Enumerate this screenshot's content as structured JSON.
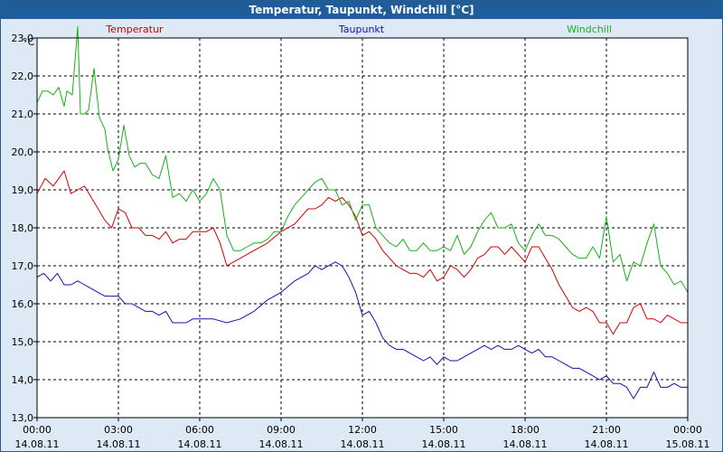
{
  "window": {
    "title": "Temperatur, Taupunkt, Windchill [°C]"
  },
  "colors": {
    "background": "#dde9f4",
    "plot_bg": "#ffffff",
    "grid": "#000000",
    "temperatur": "#d40000",
    "taupunkt": "#1010b0",
    "windchill": "#18b018"
  },
  "chart_data": {
    "type": "line",
    "title": "Temperatur, Taupunkt, Windchill [°C]",
    "ylabel": "°C",
    "xlabel": "",
    "ylim": [
      13.0,
      23.0
    ],
    "y_ticks": [
      "13,0",
      "14,0",
      "15,0",
      "16,0",
      "17,0",
      "18,0",
      "19,0",
      "20,0",
      "21,0",
      "22,0",
      "23,0"
    ],
    "xlim": [
      0,
      24
    ],
    "x_ticks": [
      {
        "time": "00:00",
        "date": "14.08.11"
      },
      {
        "time": "03:00",
        "date": "14.08.11"
      },
      {
        "time": "06:00",
        "date": "14.08.11"
      },
      {
        "time": "09:00",
        "date": "14.08.11"
      },
      {
        "time": "12:00",
        "date": "14.08.11"
      },
      {
        "time": "15:00",
        "date": "14.08.11"
      },
      {
        "time": "18:00",
        "date": "14.08.11"
      },
      {
        "time": "21:00",
        "date": "14.08.11"
      },
      {
        "time": "00:00",
        "date": "15.08.11"
      }
    ],
    "grid": true,
    "series": [
      {
        "name": "Temperatur",
        "color": "#d40000",
        "x": [
          0,
          0.3,
          0.6,
          1.0,
          1.25,
          1.5,
          1.75,
          2.0,
          2.5,
          2.75,
          3.0,
          3.25,
          3.5,
          3.75,
          4.0,
          4.25,
          4.5,
          4.75,
          5.0,
          5.25,
          5.5,
          5.75,
          6.0,
          6.25,
          6.5,
          6.75,
          7.0,
          7.5,
          8.0,
          8.5,
          9.0,
          9.5,
          10.0,
          10.25,
          10.5,
          10.75,
          11.0,
          11.25,
          11.5,
          11.75,
          12.0,
          12.25,
          12.5,
          12.75,
          13.0,
          13.25,
          13.5,
          13.75,
          14.0,
          14.25,
          14.5,
          14.75,
          15.0,
          15.25,
          15.5,
          15.75,
          16.0,
          16.25,
          16.5,
          16.75,
          17.0,
          17.25,
          17.5,
          17.75,
          18.0,
          18.25,
          18.5,
          18.75,
          19.0,
          19.25,
          19.5,
          19.75,
          20.0,
          20.25,
          20.5,
          20.75,
          21.0,
          21.25,
          21.5,
          21.75,
          22.0,
          22.25,
          22.5,
          22.75,
          23.0,
          23.25,
          23.5,
          23.75,
          24.0
        ],
        "values": [
          18.9,
          19.3,
          19.1,
          19.5,
          18.9,
          19.0,
          19.1,
          18.8,
          18.2,
          18.0,
          18.5,
          18.4,
          18.0,
          18.0,
          17.8,
          17.8,
          17.7,
          17.9,
          17.6,
          17.7,
          17.7,
          17.9,
          17.9,
          17.9,
          18.0,
          17.6,
          17.0,
          17.2,
          17.4,
          17.6,
          17.9,
          18.1,
          18.5,
          18.5,
          18.6,
          18.8,
          18.7,
          18.8,
          18.6,
          18.3,
          17.8,
          17.9,
          17.7,
          17.4,
          17.2,
          17.0,
          16.9,
          16.8,
          16.8,
          16.7,
          16.9,
          16.6,
          16.7,
          17.0,
          16.9,
          16.7,
          16.9,
          17.2,
          17.3,
          17.5,
          17.5,
          17.3,
          17.5,
          17.3,
          17.1,
          17.5,
          17.5,
          17.2,
          16.9,
          16.5,
          16.2,
          15.9,
          15.8,
          15.9,
          15.8,
          15.5,
          15.5,
          15.2,
          15.5,
          15.5,
          15.9,
          16.0,
          15.6,
          15.6,
          15.5,
          15.7,
          15.6,
          15.5,
          15.5
        ]
      },
      {
        "name": "Taupunkt",
        "color": "#1010b0",
        "x": [
          0,
          0.25,
          0.5,
          0.75,
          1.0,
          1.25,
          1.5,
          1.75,
          2.0,
          2.25,
          2.5,
          2.75,
          3.0,
          3.25,
          3.5,
          3.75,
          4.0,
          4.25,
          4.5,
          4.75,
          5.0,
          5.25,
          5.5,
          5.75,
          6.0,
          6.5,
          7.0,
          7.5,
          8.0,
          8.5,
          9.0,
          9.5,
          10.0,
          10.25,
          10.5,
          10.75,
          11.0,
          11.25,
          11.5,
          11.75,
          12.0,
          12.25,
          12.5,
          12.75,
          13.0,
          13.25,
          13.5,
          13.75,
          14.0,
          14.25,
          14.5,
          14.75,
          15.0,
          15.25,
          15.5,
          15.75,
          16.0,
          16.25,
          16.5,
          16.75,
          17.0,
          17.25,
          17.5,
          17.75,
          18.0,
          18.25,
          18.5,
          18.75,
          19.0,
          19.25,
          19.5,
          19.75,
          20.0,
          20.25,
          20.5,
          20.75,
          21.0,
          21.25,
          21.5,
          21.75,
          22.0,
          22.25,
          22.5,
          22.75,
          23.0,
          23.25,
          23.5,
          23.75,
          24.0
        ],
        "values": [
          16.7,
          16.8,
          16.6,
          16.8,
          16.5,
          16.5,
          16.6,
          16.5,
          16.4,
          16.3,
          16.2,
          16.2,
          16.2,
          16.0,
          16.0,
          15.9,
          15.8,
          15.8,
          15.7,
          15.8,
          15.5,
          15.5,
          15.5,
          15.6,
          15.6,
          15.6,
          15.5,
          15.6,
          15.8,
          16.1,
          16.3,
          16.6,
          16.8,
          17.0,
          16.9,
          17.0,
          17.1,
          17.0,
          16.7,
          16.3,
          15.7,
          15.8,
          15.5,
          15.1,
          14.9,
          14.8,
          14.8,
          14.7,
          14.6,
          14.5,
          14.6,
          14.4,
          14.6,
          14.5,
          14.5,
          14.6,
          14.7,
          14.8,
          14.9,
          14.8,
          14.9,
          14.8,
          14.8,
          14.9,
          14.8,
          14.7,
          14.8,
          14.6,
          14.6,
          14.5,
          14.4,
          14.3,
          14.3,
          14.2,
          14.1,
          14.0,
          14.1,
          13.9,
          13.9,
          13.8,
          13.5,
          13.8,
          13.8,
          14.2,
          13.8,
          13.8,
          13.9,
          13.8,
          13.8
        ]
      },
      {
        "name": "Windchill",
        "color": "#18b018",
        "x": [
          0,
          0.2,
          0.4,
          0.6,
          0.8,
          1.0,
          1.1,
          1.3,
          1.5,
          1.6,
          1.75,
          1.9,
          2.1,
          2.3,
          2.5,
          2.6,
          2.8,
          3.0,
          3.2,
          3.4,
          3.6,
          3.8,
          4.0,
          4.25,
          4.5,
          4.75,
          5.0,
          5.25,
          5.5,
          5.75,
          6.0,
          6.25,
          6.5,
          6.75,
          7.0,
          7.25,
          7.5,
          7.75,
          8.0,
          8.25,
          8.5,
          8.75,
          9.0,
          9.25,
          9.5,
          9.75,
          10.0,
          10.25,
          10.5,
          10.75,
          11.0,
          11.25,
          11.5,
          11.75,
          12.0,
          12.25,
          12.5,
          12.75,
          13.0,
          13.25,
          13.5,
          13.75,
          14.0,
          14.25,
          14.5,
          14.75,
          15.0,
          15.25,
          15.5,
          15.75,
          16.0,
          16.25,
          16.5,
          16.75,
          17.0,
          17.25,
          17.5,
          17.75,
          18.0,
          18.25,
          18.5,
          18.75,
          19.0,
          19.25,
          19.5,
          19.75,
          20.0,
          20.25,
          20.5,
          20.75,
          21.0,
          21.25,
          21.5,
          21.75,
          22.0,
          22.25,
          22.5,
          22.75,
          23.0,
          23.25,
          23.5,
          23.75,
          24.0
        ],
        "values": [
          21.3,
          21.6,
          21.6,
          21.5,
          21.7,
          21.2,
          21.6,
          21.5,
          23.3,
          21.0,
          21.0,
          21.1,
          22.2,
          20.9,
          20.6,
          20.1,
          19.5,
          19.8,
          20.7,
          19.9,
          19.6,
          19.7,
          19.7,
          19.4,
          19.3,
          19.9,
          18.8,
          18.9,
          18.7,
          19.0,
          18.7,
          18.9,
          19.3,
          19.0,
          17.8,
          17.4,
          17.4,
          17.5,
          17.6,
          17.6,
          17.7,
          17.9,
          17.9,
          18.3,
          18.6,
          18.8,
          19.0,
          19.2,
          19.3,
          19.0,
          19.0,
          18.6,
          18.7,
          18.2,
          18.6,
          18.6,
          18.0,
          17.8,
          17.6,
          17.5,
          17.7,
          17.4,
          17.4,
          17.6,
          17.4,
          17.4,
          17.5,
          17.4,
          17.8,
          17.3,
          17.5,
          17.9,
          18.2,
          18.4,
          18.0,
          18.0,
          18.1,
          17.6,
          17.4,
          17.8,
          18.1,
          17.8,
          17.8,
          17.7,
          17.5,
          17.3,
          17.2,
          17.2,
          17.5,
          17.2,
          18.3,
          17.1,
          17.3,
          16.6,
          17.1,
          17.0,
          17.6,
          18.1,
          17.0,
          16.8,
          16.5,
          16.6,
          16.3
        ]
      }
    ]
  }
}
